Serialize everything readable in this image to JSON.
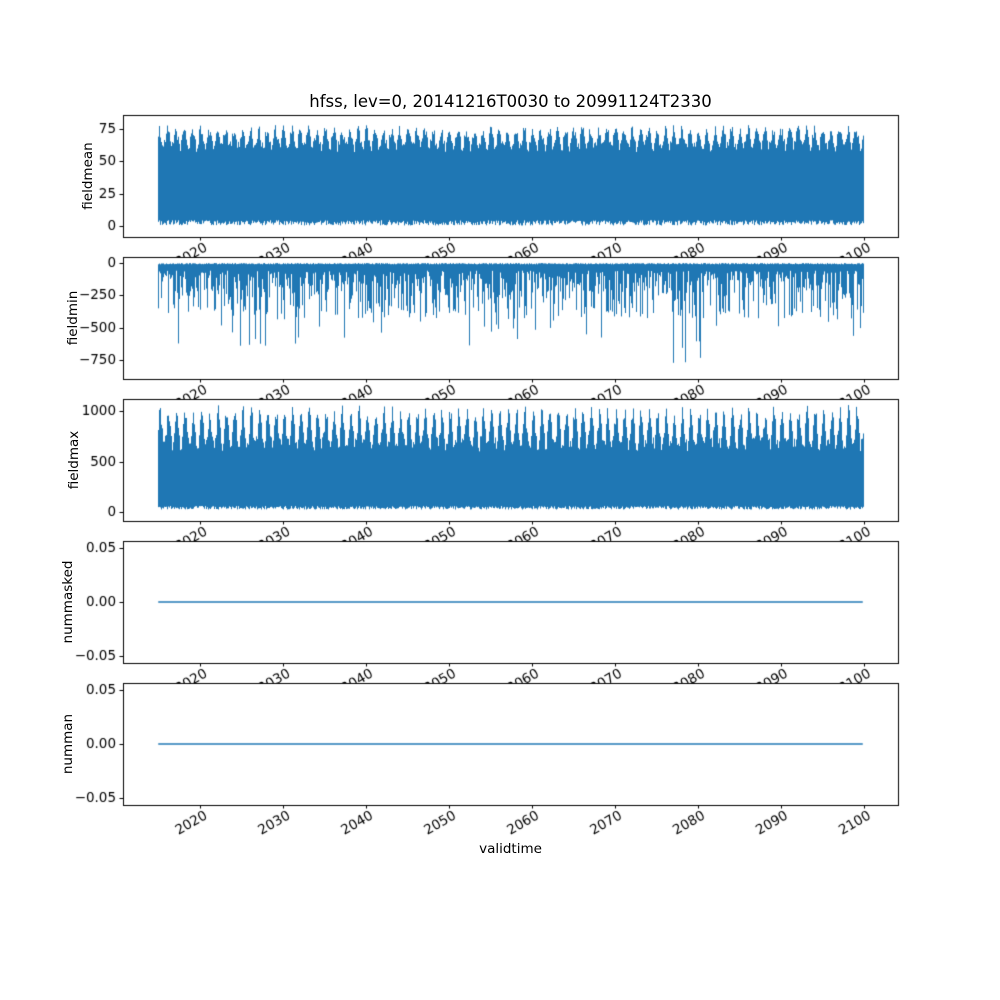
{
  "figure": {
    "title": "hfss, lev=0, 20141216T0030 to 20991124T2330",
    "xlabel": "validtime",
    "line_color": "#1f77b4",
    "axes_color": "#000000",
    "xlim": [
      2010.71,
      2104.15
    ],
    "x_start": 2014.96,
    "x_end": 2099.9,
    "x_ticks": [
      {
        "v": 2020,
        "label": "2020"
      },
      {
        "v": 2030,
        "label": "2030"
      },
      {
        "v": 2040,
        "label": "2040"
      },
      {
        "v": 2050,
        "label": "2050"
      },
      {
        "v": 2060,
        "label": "2060"
      },
      {
        "v": 2070,
        "label": "2070"
      },
      {
        "v": 2080,
        "label": "2080"
      },
      {
        "v": 2090,
        "label": "2090"
      },
      {
        "v": 2100,
        "label": "2100"
      }
    ]
  },
  "chart_data": [
    {
      "type": "line",
      "ylabel": "fieldmean",
      "ylim": [
        -8.4,
        85.7
      ],
      "y_ticks": [
        {
          "v": 0,
          "label": "0"
        },
        {
          "v": 25,
          "label": "25"
        },
        {
          "v": 50,
          "label": "50"
        },
        {
          "v": 75,
          "label": "75"
        }
      ],
      "signal": {
        "kind": "noise-band",
        "description": "dense oscillating series, annual cycle, values between ~0 and ~78",
        "period_years": 1,
        "phase": 1.3,
        "top_base": 57,
        "top_seasonal": 13,
        "top_noise": 8,
        "top_max": 78.5,
        "bottom_base": 0.5,
        "bottom_noise": 4
      }
    },
    {
      "type": "line",
      "ylabel": "fieldmin",
      "ylim": [
        -894,
        45.5
      ],
      "y_ticks": [
        {
          "v": 0,
          "label": "0"
        },
        {
          "v": -250,
          "label": "−250"
        },
        {
          "v": -500,
          "label": "−500"
        },
        {
          "v": -750,
          "label": "−750"
        }
      ],
      "signal": {
        "kind": "spikes-down",
        "description": "dense negative spikes from ~0 down to ~-450, occasional spikes to ~-640, deepest cluster near 2078 reaching ~-770",
        "top_min": 1,
        "top_noise": 10,
        "depth_min": 60,
        "depth_max": 430,
        "spike_prob": 0.05,
        "spike_max": 640,
        "cluster_year": 2078.5,
        "cluster_halfwidth": 2,
        "cluster_prob": 0.25,
        "cluster_min": 600,
        "cluster_max": 770
      }
    },
    {
      "type": "line",
      "ylabel": "fieldmax",
      "ylim": [
        -88,
        1118
      ],
      "y_ticks": [
        {
          "v": 0,
          "label": "0"
        },
        {
          "v": 500,
          "label": "500"
        },
        {
          "v": 1000,
          "label": "1000"
        }
      ],
      "signal": {
        "kind": "seasonal-band",
        "description": "dense annual comb pattern, peaks ~900-1050, base ~30-60",
        "period_years": 1,
        "phase": 0.7,
        "top_base": 600,
        "top_seasonal": 320,
        "top_noise": 140,
        "bottom_base": 25,
        "bottom_noise": 35
      }
    },
    {
      "type": "line",
      "ylabel": "nummasked",
      "ylim": [
        -0.0565,
        0.0565
      ],
      "y_ticks": [
        {
          "v": 0.05,
          "label": "0.05"
        },
        {
          "v": 0,
          "label": "0.00"
        },
        {
          "v": -0.05,
          "label": "−0.05"
        }
      ],
      "signal": {
        "kind": "constant",
        "value": 0,
        "description": "flat line at zero"
      }
    },
    {
      "type": "line",
      "ylabel": "numman",
      "ylim": [
        -0.0565,
        0.0565
      ],
      "y_ticks": [
        {
          "v": 0.05,
          "label": "0.05"
        },
        {
          "v": 0,
          "label": "0.00"
        },
        {
          "v": -0.05,
          "label": "−0.05"
        }
      ],
      "signal": {
        "kind": "constant",
        "value": 0,
        "description": "flat line at zero"
      }
    }
  ]
}
